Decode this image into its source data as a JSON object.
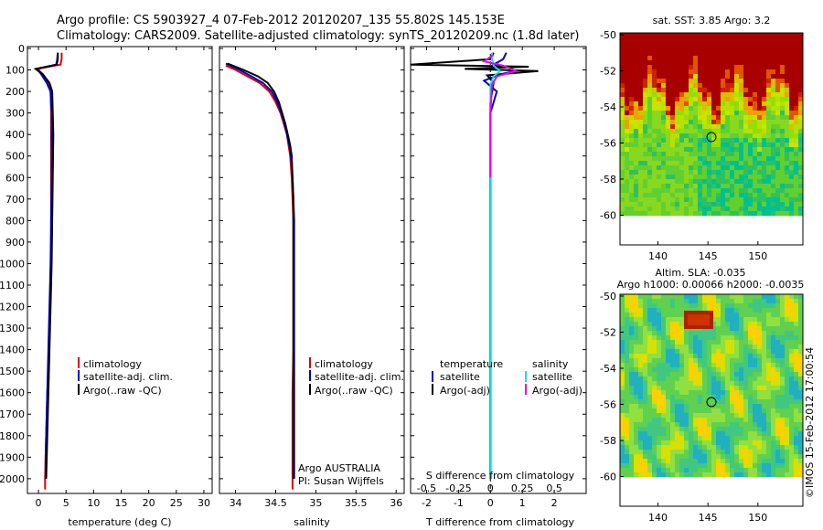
{
  "header": {
    "title_line1": "Argo profile: CS 5903927_4 07-Feb-2012 20120207_135 55.802S 145.153E",
    "title_line2": "Climatology: CARS2009. Satellite-adjusted climatology: synTS_20120209.nc (1.8d later)"
  },
  "credit": "©IMOS 15-Feb-2012 17:00:54",
  "colors": {
    "climatology": "#e00000",
    "satellite": "#0000cc",
    "argo": "#000000",
    "sat_salinity": "#00e5e5",
    "argo_salinity": "#ee00ee"
  },
  "depth_axis": {
    "ticks": [
      0,
      100,
      200,
      300,
      400,
      500,
      600,
      700,
      800,
      900,
      1000,
      1100,
      1200,
      1300,
      1400,
      1500,
      1600,
      1700,
      1800,
      1900,
      2000
    ],
    "ylim": [
      2060,
      0
    ]
  },
  "chart_data": [
    {
      "type": "line",
      "xlabel": "temperature (deg C)",
      "xlim": [
        -2,
        31.5
      ],
      "xticks": [
        0,
        5,
        10,
        15,
        20,
        25,
        30
      ],
      "legend": [
        "climatology",
        "satellite-adj. clim.",
        "Argo(..raw -QC)"
      ],
      "series": [
        {
          "name": "climatology",
          "color": "#e00000",
          "x": [
            4.2,
            4.2,
            4.0,
            -0.2,
            0.8,
            1.8,
            2.2,
            2.3,
            2.3,
            2.3,
            2.3,
            2.3,
            2.2,
            2.1,
            2.0,
            1.9,
            1.8,
            1.6,
            1.5,
            1.4,
            1.3,
            1.2,
            1.2
          ],
          "y": [
            20,
            50,
            75,
            95,
            120,
            160,
            200,
            300,
            400,
            600,
            800,
            1000,
            1100,
            1200,
            1300,
            1400,
            1500,
            1600,
            1700,
            1800,
            1900,
            2000,
            2050
          ]
        },
        {
          "name": "satellite-adj. clim.",
          "color": "#0000cc",
          "x": [
            3.5,
            3.4,
            3.2,
            -0.3,
            0.5,
            1.5,
            2.2,
            2.4,
            2.4,
            2.4,
            2.3,
            2.2,
            2.1,
            2.0,
            1.9,
            1.8,
            1.7,
            1.6,
            1.5,
            1.4,
            1.3,
            1.3
          ],
          "y": [
            20,
            50,
            75,
            95,
            120,
            160,
            200,
            300,
            400,
            600,
            800,
            1000,
            1100,
            1200,
            1300,
            1400,
            1500,
            1600,
            1700,
            1800,
            1900,
            2000
          ]
        },
        {
          "name": "Argo(..raw -QC)",
          "color": "#000000",
          "x": [
            3.5,
            3.5,
            3.3,
            -0.5,
            0.8,
            2.0,
            2.5,
            2.6,
            2.7,
            2.6,
            2.5,
            2.4,
            2.3,
            2.2,
            2.1,
            2.0,
            1.9,
            1.8,
            1.7,
            1.6,
            1.5,
            1.4
          ],
          "y": [
            20,
            50,
            75,
            95,
            120,
            160,
            200,
            300,
            400,
            600,
            800,
            1000,
            1100,
            1200,
            1300,
            1400,
            1500,
            1600,
            1700,
            1800,
            1900,
            2000
          ]
        }
      ]
    },
    {
      "type": "line",
      "xlabel": "salinity",
      "xlim": [
        33.8,
        36.1
      ],
      "xticks": [
        34,
        34.5,
        35,
        35.5,
        36
      ],
      "legend": [
        "climatology",
        "satellite-adj. clim.",
        "Argo(..raw -QC)"
      ],
      "annotation": [
        "Argo AUSTRALIA",
        "PI: Susan Wijffels"
      ],
      "series": [
        {
          "name": "climatology",
          "color": "#e00000",
          "x": [
            33.88,
            34.0,
            34.15,
            34.3,
            34.42,
            34.5,
            34.56,
            34.6,
            34.64,
            34.66,
            34.68,
            34.7,
            34.71,
            34.72,
            34.72,
            34.72,
            34.72,
            34.72,
            34.71,
            34.71,
            34.71,
            34.71
          ],
          "y": [
            80,
            100,
            130,
            160,
            200,
            250,
            300,
            350,
            400,
            450,
            500,
            600,
            700,
            800,
            900,
            1000,
            1200,
            1400,
            1600,
            1800,
            2000,
            2050
          ]
        },
        {
          "name": "satellite-adj. clim.",
          "color": "#0000cc",
          "x": [
            33.88,
            34.05,
            34.2,
            34.34,
            34.45,
            34.52,
            34.57,
            34.61,
            34.64,
            34.67,
            34.69,
            34.71,
            34.72,
            34.73,
            34.73,
            34.73,
            34.73,
            34.73,
            34.73,
            34.73,
            34.73
          ],
          "y": [
            70,
            100,
            130,
            160,
            200,
            250,
            300,
            350,
            400,
            450,
            500,
            600,
            700,
            800,
            900,
            1000,
            1200,
            1400,
            1600,
            1800,
            2000
          ]
        },
        {
          "name": "Argo(..raw -QC)",
          "color": "#000000",
          "x": [
            33.9,
            34.1,
            34.28,
            34.4,
            34.48,
            34.54,
            34.58,
            34.62,
            34.65,
            34.68,
            34.7,
            34.71,
            34.72,
            34.72,
            34.72,
            34.72,
            34.72,
            34.72,
            34.72,
            34.72,
            34.72
          ],
          "y": [
            70,
            100,
            130,
            160,
            200,
            250,
            300,
            350,
            400,
            450,
            500,
            600,
            700,
            800,
            900,
            1000,
            1200,
            1400,
            1600,
            1800,
            2000
          ]
        }
      ]
    },
    {
      "type": "line",
      "xlabel": "T difference from climatology",
      "xlabel_top": "S difference from climatology",
      "xlim": [
        -2.5,
        3
      ],
      "xticks": [
        -2,
        -1,
        0,
        1,
        2
      ],
      "s_xticks": [
        "-0.5",
        "-0.25",
        "0",
        "0.25",
        "0.5"
      ],
      "legend_headers": [
        "temperature",
        "salinity"
      ],
      "legend": [
        [
          "satellite",
          "Argo(-adj)"
        ],
        [
          "satellite",
          "Argo(-adj)"
        ]
      ],
      "series": [
        {
          "name": "satellite",
          "color": "#0000cc",
          "x": [
            0.5,
            0.4,
            0.1,
            0.6,
            0.8,
            0.3,
            -0.2,
            0.2,
            0.0,
            0.0,
            0.0,
            0.0,
            0.0,
            0.0,
            0.0
          ],
          "y": [
            20,
            50,
            75,
            90,
            105,
            120,
            150,
            200,
            300,
            500,
            800,
            1100,
            1400,
            1700,
            2000
          ]
        },
        {
          "name": "Argo(-adj)",
          "color": "#000000",
          "x": [
            0.1,
            0.0,
            -3.0,
            1.2,
            -0.8,
            1.5,
            -0.1,
            0.1,
            0.0,
            0.0,
            0.0,
            0.0,
            0.0,
            0.0
          ],
          "y": [
            20,
            50,
            75,
            85,
            95,
            105,
            125,
            160,
            250,
            500,
            900,
            1300,
            1700,
            2000
          ]
        },
        {
          "name": "satellite",
          "color": "#00e5e5",
          "x": [
            0.05,
            0.05,
            0.1,
            0.3,
            0.1,
            0.0,
            0.0,
            0.0,
            0.0,
            0.0,
            0.0
          ],
          "y": [
            20,
            50,
            80,
            105,
            130,
            170,
            250,
            500,
            1000,
            1500,
            2000
          ]
        },
        {
          "name": "Argo(-adj)",
          "color": "#ee00ee",
          "x": [
            0.1,
            -0.2,
            0.4,
            0.8,
            0.2,
            0.05,
            0.0,
            0.0
          ],
          "y": [
            30,
            60,
            80,
            105,
            130,
            170,
            300,
            600
          ]
        }
      ]
    },
    {
      "type": "heatmap",
      "title": "sat. SST: 3.85  Argo: 3.2",
      "xticks": [
        140,
        145,
        150
      ],
      "yticks": [
        -50,
        -52,
        -54,
        -56,
        -58,
        -60
      ],
      "marker": {
        "lon": 145.153,
        "lat": -55.802
      }
    },
    {
      "type": "heatmap",
      "title": "Altim. SLA: -0.035",
      "subtitle": "Argo h1000: 0.00066  h2000: -0.0035",
      "xticks": [
        140,
        145,
        150
      ],
      "yticks": [
        -50,
        -52,
        -54,
        -56,
        -58,
        -60
      ],
      "marker": {
        "lon": 145.153,
        "lat": -55.802
      }
    }
  ]
}
